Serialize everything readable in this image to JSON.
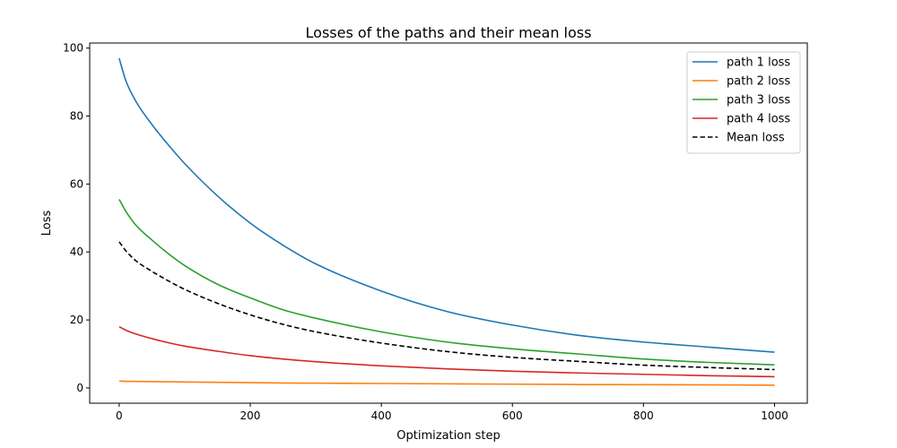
{
  "chart_data": {
    "type": "line",
    "title": "Losses of the paths and their mean loss",
    "xlabel": "Optimization step",
    "ylabel": "Loss",
    "xlim": [
      -45,
      1050
    ],
    "ylim": [
      -4.5,
      101.5
    ],
    "xticks": [
      0,
      200,
      400,
      600,
      800,
      1000
    ],
    "yticks": [
      0,
      20,
      40,
      60,
      80,
      100
    ],
    "grid": false,
    "legend_position": "top-right",
    "x": [
      0,
      10,
      25,
      50,
      75,
      100,
      150,
      200,
      250,
      300,
      400,
      500,
      600,
      700,
      800,
      900,
      1000
    ],
    "series": [
      {
        "name": "path 1 loss",
        "color": "#1f77b4",
        "dash": "solid",
        "values": [
          97,
          90.5,
          84.5,
          77.5,
          71.5,
          66,
          56.5,
          48.5,
          42,
          36.5,
          28.5,
          22.5,
          18.5,
          15.5,
          13.5,
          12,
          10.5
        ]
      },
      {
        "name": "path 2 loss",
        "color": "#ff7f0e",
        "dash": "solid",
        "values": [
          2.0,
          1.95,
          1.9,
          1.85,
          1.8,
          1.75,
          1.65,
          1.55,
          1.45,
          1.4,
          1.3,
          1.2,
          1.1,
          1.0,
          0.95,
          0.9,
          0.8
        ]
      },
      {
        "name": "path 3 loss",
        "color": "#2ca02c",
        "dash": "solid",
        "values": [
          55.5,
          52,
          48,
          43.5,
          39.5,
          36,
          30.5,
          26.5,
          23,
          20.5,
          16.5,
          13.5,
          11.5,
          10,
          8.5,
          7.5,
          6.8
        ]
      },
      {
        "name": "path 4 loss",
        "color": "#d62728",
        "dash": "solid",
        "values": [
          18,
          17,
          15.9,
          14.5,
          13.3,
          12.3,
          10.8,
          9.5,
          8.5,
          7.7,
          6.5,
          5.6,
          4.9,
          4.4,
          4.0,
          3.6,
          3.3
        ]
      },
      {
        "name": "Mean loss",
        "color": "#000000",
        "dash": "dashed",
        "values": [
          43,
          40.4,
          37.5,
          34.3,
          31.5,
          29.0,
          24.9,
          21.5,
          18.7,
          16.5,
          13.2,
          10.7,
          9.0,
          7.8,
          6.7,
          6.0,
          5.4
        ]
      }
    ]
  }
}
